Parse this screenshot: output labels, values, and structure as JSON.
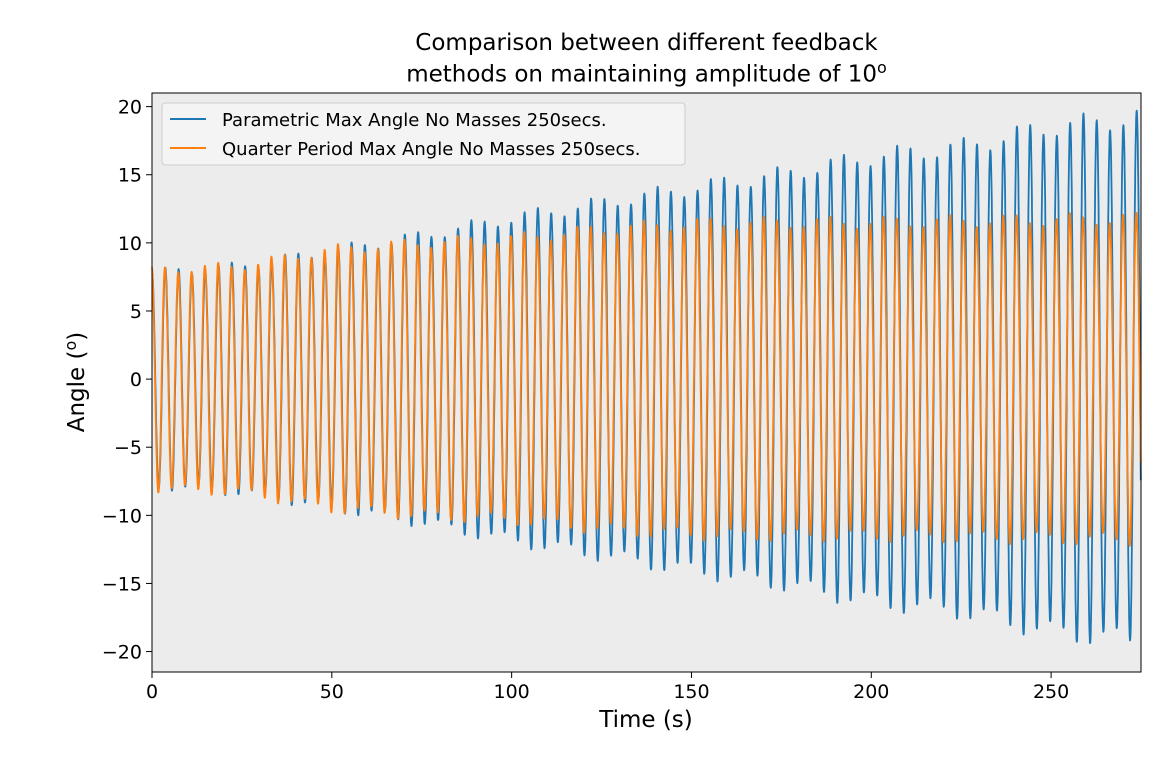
{
  "chart_data": {
    "type": "line",
    "title": "Comparison between different feedback",
    "title_line2_prefix": "methods on maintaining amplitude of 10",
    "title_line2_superscript": "o",
    "xlabel": "Time (s)",
    "ylabel_prefix": "Angle (",
    "ylabel_superscript": "o",
    "ylabel_suffix": ")",
    "xlim": [
      0,
      275
    ],
    "ylim": [
      -21.5,
      21
    ],
    "xticks": [
      0,
      50,
      100,
      150,
      200,
      250
    ],
    "xtick_labels": [
      "0",
      "50",
      "100",
      "150",
      "200",
      "250"
    ],
    "yticks": [
      20,
      15,
      10,
      5,
      0,
      -5,
      -10,
      -15,
      -20
    ],
    "ytick_labels": [
      "20",
      "15",
      "10",
      "5",
      "0",
      "−5",
      "−10",
      "−15",
      "−20"
    ],
    "grid": false,
    "background": "#ececec",
    "legend_position": "upper-left",
    "series": [
      {
        "name": "Parametric Max Angle No Masses 250secs.",
        "color": "#1f77b4",
        "period_s": 3.7,
        "envelope": {
          "t": [
            0,
            25,
            50,
            75,
            100,
            125,
            150,
            175,
            200,
            225,
            250,
            275
          ],
          "amplitude": [
            7.8,
            8.3,
            9.4,
            10.5,
            11.8,
            12.9,
            14.0,
            15.0,
            16.3,
            17.0,
            18.5,
            19.2
          ]
        }
      },
      {
        "name": "Quarter Period Max Angle No Masses 250secs.",
        "color": "#ff7f0e",
        "period_s": 3.7,
        "envelope": {
          "t": [
            0,
            25,
            50,
            75,
            100,
            125,
            150,
            175,
            200,
            225,
            250,
            275
          ],
          "amplitude": [
            8.0,
            8.3,
            9.5,
            10.0,
            10.3,
            11.0,
            11.4,
            11.5,
            11.5,
            11.6,
            11.7,
            11.8
          ]
        }
      }
    ]
  }
}
